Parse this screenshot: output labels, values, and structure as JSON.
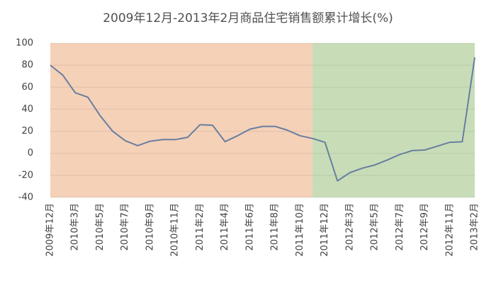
{
  "chart_data": {
    "type": "line",
    "title": "2009年12月-2013年2月商品住宅销售额累计增长(%)",
    "categories": [
      "2009年12月",
      null,
      "2010年3月",
      null,
      "2010年5月",
      null,
      "2010年7月",
      null,
      "2010年9月",
      null,
      "2010年11月",
      null,
      "2011年2月",
      null,
      "2011年4月",
      null,
      "2011年6月",
      null,
      "2011年8月",
      null,
      "2011年10月",
      null,
      "2011年12月",
      null,
      "2012年3月",
      null,
      "2012年5月",
      null,
      "2012年7月",
      null,
      "2012年9月",
      null,
      "2012年11月",
      null,
      "2013年2月"
    ],
    "values": [
      80,
      71,
      55,
      51,
      34,
      20,
      11.5,
      7,
      11,
      12.5,
      12.5,
      14.5,
      26,
      25.5,
      10.6,
      16,
      22,
      24.5,
      24.5,
      21,
      16,
      13.5,
      10,
      -25,
      -17.5,
      -13.5,
      -10.5,
      -6,
      -1,
      2.5,
      3,
      6.5,
      10,
      10.5,
      87
    ],
    "color": "#687fa0",
    "regions": [
      {
        "start": 0,
        "end": 21,
        "color": "#f5d1b8"
      },
      {
        "start": 21,
        "end": 34,
        "color": "#c8ddb7"
      }
    ],
    "ylim": [
      -40,
      100
    ],
    "yticks": [
      -40,
      -20,
      0,
      20,
      40,
      60,
      80,
      100
    ],
    "grid": true
  }
}
